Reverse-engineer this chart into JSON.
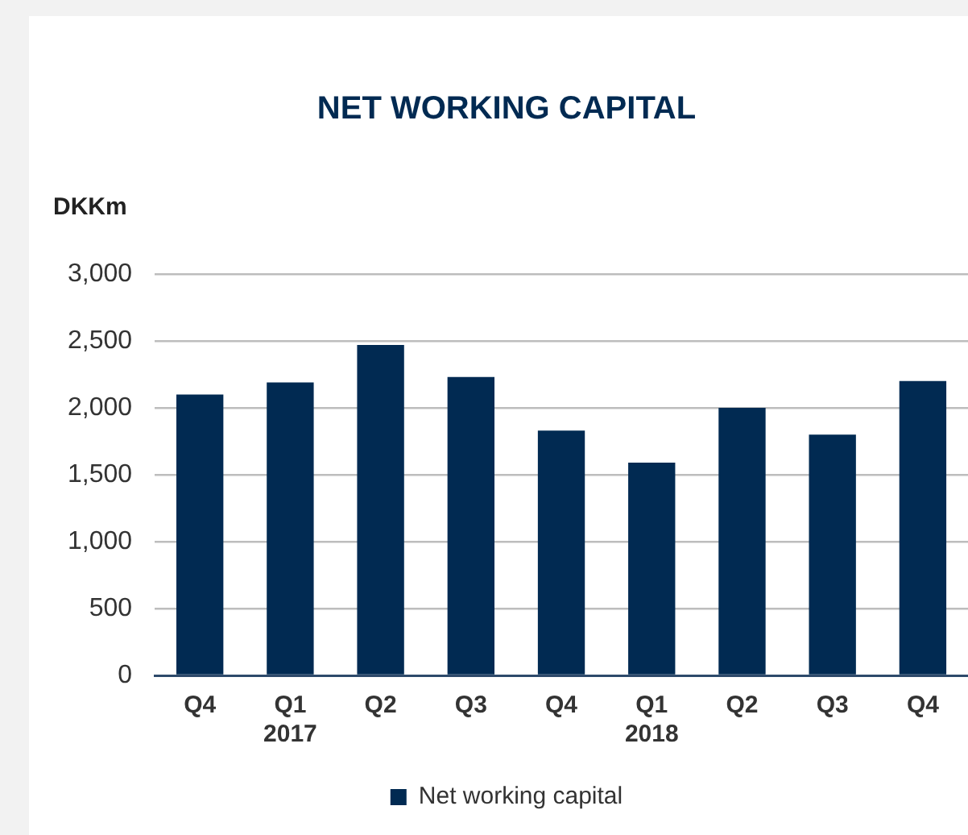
{
  "chart_data": {
    "type": "bar",
    "title": "NET WORKING CAPITAL",
    "ylabel": "DKKm",
    "categories": [
      "Q4",
      "Q1\n2017",
      "Q2",
      "Q3",
      "Q4",
      "Q1\n2018",
      "Q2",
      "Q3",
      "Q4"
    ],
    "series": [
      {
        "name": "Net working capital",
        "color": "#012a52",
        "values": [
          2100,
          2190,
          2470,
          2230,
          1830,
          1590,
          2000,
          1800,
          2200
        ]
      }
    ],
    "ylim": [
      0,
      3000
    ],
    "yticks": [
      0,
      {
        "value": 500,
        "label": "500"
      },
      {
        "value": 1000,
        "label": "1,000"
      },
      {
        "value": 1500,
        "label": "1,500"
      },
      {
        "value": 2000,
        "label": "2,000"
      },
      {
        "value": 2500,
        "label": "2,500"
      },
      {
        "value": 3000,
        "label": "3,000"
      }
    ],
    "grid": "y",
    "legend": "bottom"
  }
}
